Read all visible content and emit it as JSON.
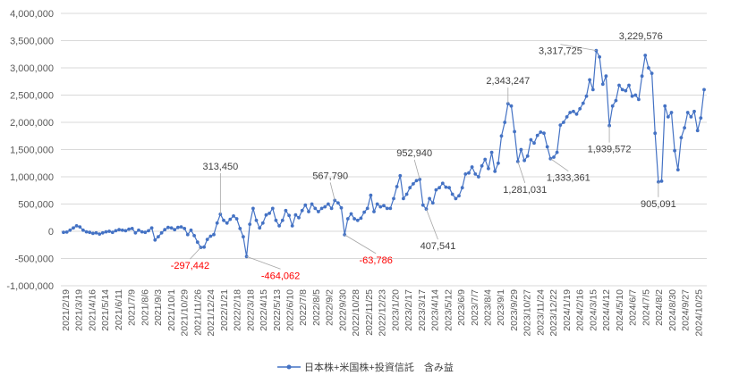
{
  "chart_data": {
    "type": "line",
    "title": "",
    "xlabel": "",
    "ylabel": "",
    "ylim": [
      -1000000,
      4000000
    ],
    "y_ticks": [
      4000000,
      3500000,
      3000000,
      2500000,
      2000000,
      1500000,
      1000000,
      500000,
      0,
      -500000,
      -1000000
    ],
    "y_tick_labels": [
      "4,000,000",
      "3,500,000",
      "3,000,000",
      "2,500,000",
      "2,000,000",
      "1,500,000",
      "1,000,000",
      "500,000",
      "0",
      "-500,000",
      "-1,000,000"
    ],
    "x_tick_labels": [
      "2021/2/19",
      "2021/3/19",
      "2021/4/16",
      "2021/5/14",
      "2021/6/11",
      "2021/7/9",
      "2021/8/6",
      "2021/9/3",
      "2021/10/1",
      "2021/10/29",
      "2021/11/26",
      "2021/12/24",
      "2022/1/21",
      "2022/2/18",
      "2022/3/18",
      "2022/4/15",
      "2022/5/13",
      "2022/6/10",
      "2022/7/8",
      "2022/8/5",
      "2022/9/2",
      "2022/9/30",
      "2022/10/28",
      "2022/11/25",
      "2022/12/23",
      "2023/1/20",
      "2023/2/17",
      "2023/3/17",
      "2023/4/14",
      "2023/5/12",
      "2023/6/9",
      "2023/7/7",
      "2023/8/4",
      "2023/9/1",
      "2023/9/29",
      "2023/10/27",
      "2023/11/24",
      "2023/12/22",
      "2024/1/19",
      "2024/2/16",
      "2024/3/15",
      "2024/4/12",
      "2024/5/10",
      "2024/6/7",
      "2024/7/5",
      "2024/8/2",
      "2024/8/30",
      "2024/9/27",
      "2024/10/25"
    ],
    "grid": true,
    "legend_position": "bottom",
    "line_color": "#4472c4",
    "series": [
      {
        "name": "日本株+米国株+投資信託　含み益",
        "values": [
          -20000,
          -15000,
          20000,
          60000,
          100000,
          80000,
          20000,
          -10000,
          -20000,
          -40000,
          -30000,
          -50000,
          -30000,
          -10000,
          0,
          -20000,
          10000,
          30000,
          20000,
          10000,
          40000,
          50000,
          -30000,
          20000,
          -10000,
          -20000,
          10000,
          60000,
          -160000,
          -100000,
          -30000,
          30000,
          70000,
          60000,
          30000,
          70000,
          80000,
          50000,
          -60000,
          20000,
          -80000,
          -200000,
          -297442,
          -290000,
          -150000,
          -90000,
          -60000,
          150000,
          313450,
          200000,
          150000,
          220000,
          280000,
          230000,
          50000,
          -100000,
          -464062,
          130000,
          420000,
          200000,
          60000,
          150000,
          300000,
          330000,
          420000,
          200000,
          100000,
          200000,
          380000,
          290000,
          100000,
          300000,
          250000,
          380000,
          480000,
          360000,
          500000,
          420000,
          360000,
          420000,
          450000,
          500000,
          420000,
          567790,
          520000,
          430000,
          -63786,
          230000,
          320000,
          230000,
          200000,
          240000,
          350000,
          420000,
          660000,
          360000,
          500000,
          450000,
          470000,
          420000,
          420000,
          600000,
          820000,
          1020000,
          600000,
          680000,
          800000,
          870000,
          930000,
          952940,
          480000,
          407541,
          600000,
          520000,
          760000,
          800000,
          880000,
          810000,
          800000,
          680000,
          600000,
          650000,
          800000,
          1050000,
          1070000,
          1180000,
          1050000,
          1000000,
          1200000,
          1320000,
          1150000,
          1450000,
          1100000,
          1250000,
          1750000,
          2000000,
          2343247,
          2300000,
          1830000,
          1281031,
          1500000,
          1300000,
          1380000,
          1680000,
          1620000,
          1760000,
          1820000,
          1800000,
          1550000,
          1333361,
          1360000,
          1450000,
          1950000,
          2000000,
          2100000,
          2180000,
          2200000,
          2150000,
          2250000,
          2350000,
          2480000,
          2780000,
          2600000,
          3317725,
          3200000,
          2700000,
          2850000,
          1939572,
          2300000,
          2400000,
          2680000,
          2600000,
          2580000,
          2680000,
          2480000,
          2500000,
          2420000,
          2850000,
          3229576,
          3000000,
          2900000,
          1800000,
          905091,
          920000,
          2300000,
          2100000,
          2180000,
          1480000,
          1130000,
          1720000,
          1900000,
          2180000,
          2100000,
          2200000,
          1850000,
          2080000,
          2600000
        ]
      }
    ],
    "annotations": [
      {
        "value": -297442,
        "label": "-297,442",
        "color": "#ff0000"
      },
      {
        "value": 313450,
        "label": "313,450",
        "color": "#404040"
      },
      {
        "value": -464062,
        "label": "-464,062",
        "color": "#ff0000"
      },
      {
        "value": 567790,
        "label": "567,790",
        "color": "#404040"
      },
      {
        "value": -63786,
        "label": "-63,786",
        "color": "#ff0000"
      },
      {
        "value": 952940,
        "label": "952,940",
        "color": "#404040"
      },
      {
        "value": 407541,
        "label": "407,541",
        "color": "#404040"
      },
      {
        "value": 2343247,
        "label": "2,343,247",
        "color": "#404040"
      },
      {
        "value": 1281031,
        "label": "1,281,031",
        "color": "#404040"
      },
      {
        "value": 1333361,
        "label": "1,333,361",
        "color": "#404040"
      },
      {
        "value": 3317725,
        "label": "3,317,725",
        "color": "#404040"
      },
      {
        "value": 1939572,
        "label": "1,939,572",
        "color": "#404040"
      },
      {
        "value": 3229576,
        "label": "3,229,576",
        "color": "#404040"
      },
      {
        "value": 905091,
        "label": "905,091",
        "color": "#404040"
      }
    ]
  }
}
